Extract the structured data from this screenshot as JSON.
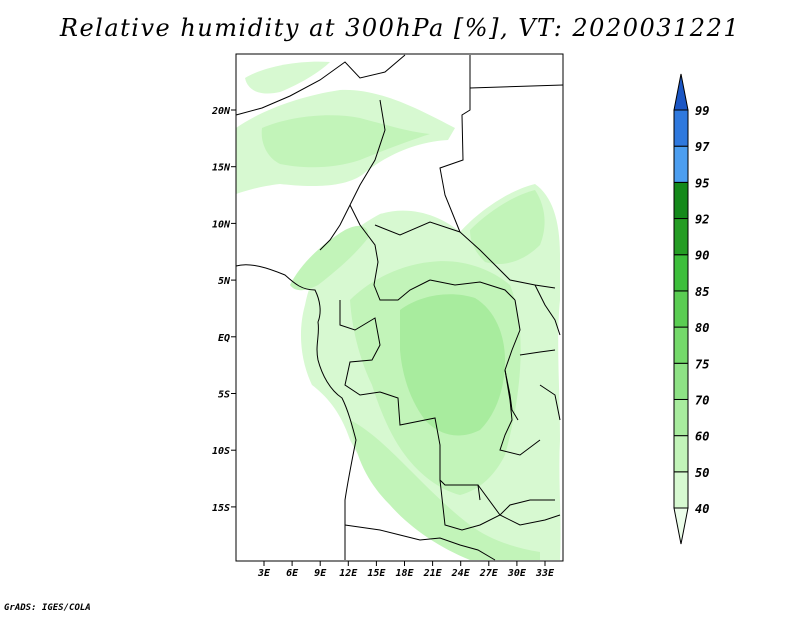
{
  "title": "Relative humidity at 300hPa [%], VT: 2020031221",
  "credit": "GrADS: IGES/COLA",
  "map": {
    "lat_labels": [
      "20N",
      "15N",
      "10N",
      "5N",
      "EQ",
      "5S",
      "10S",
      "15S"
    ],
    "lon_labels": [
      "3E",
      "6E",
      "9E",
      "12E",
      "15E",
      "18E",
      "21E",
      "24E",
      "27E",
      "30E",
      "33E"
    ],
    "lat_range": [
      -20,
      25
    ],
    "lon_range": [
      0,
      35
    ]
  },
  "colorbar": {
    "levels": [
      "40",
      "50",
      "60",
      "70",
      "75",
      "80",
      "85",
      "90",
      "92",
      "95",
      "97",
      "99"
    ],
    "colors": [
      "#ecfdea",
      "#d7f9d1",
      "#c2f4b9",
      "#a8ec9e",
      "#8ee285",
      "#74d96a",
      "#5acd52",
      "#3dbf3b",
      "#259d24",
      "#14891a",
      "#4c9ef0",
      "#2f79de",
      "#1b56c4"
    ]
  }
}
